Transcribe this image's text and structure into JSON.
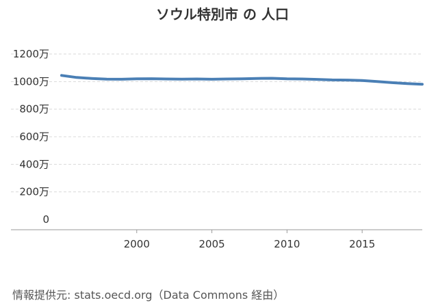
{
  "chart_data": {
    "type": "line",
    "title": "ソウル特別市 の 人口",
    "xlabel": "",
    "ylabel": "",
    "xlim": [
      1995,
      2019
    ],
    "ylim": [
      0,
      12000000
    ],
    "x_ticks": [
      2000,
      2005,
      2010,
      2015
    ],
    "x_tick_labels": [
      "2000",
      "2005",
      "2010",
      "2015"
    ],
    "y_ticks": [
      0,
      2000000,
      4000000,
      6000000,
      8000000,
      10000000,
      12000000
    ],
    "y_tick_labels": [
      "0",
      "200万",
      "400万",
      "600万",
      "800万",
      "1000万",
      "1200万"
    ],
    "grid": true,
    "legend": "none",
    "series": [
      {
        "color": "#4a7fb5",
        "x": [
          1995,
          1996,
          1997,
          1998,
          1999,
          2000,
          2001,
          2002,
          2003,
          2004,
          2005,
          2006,
          2007,
          2008,
          2009,
          2010,
          2011,
          2012,
          2013,
          2014,
          2015,
          2016,
          2017,
          2018,
          2019
        ],
        "values": [
          10450000,
          10300000,
          10230000,
          10180000,
          10170000,
          10200000,
          10210000,
          10190000,
          10180000,
          10190000,
          10170000,
          10190000,
          10200000,
          10230000,
          10240000,
          10200000,
          10190000,
          10160000,
          10120000,
          10110000,
          10080000,
          10000000,
          9920000,
          9860000,
          9810000
        ]
      }
    ]
  },
  "source": "情報提供元: stats.oecd.org（Data Commons 経由）"
}
